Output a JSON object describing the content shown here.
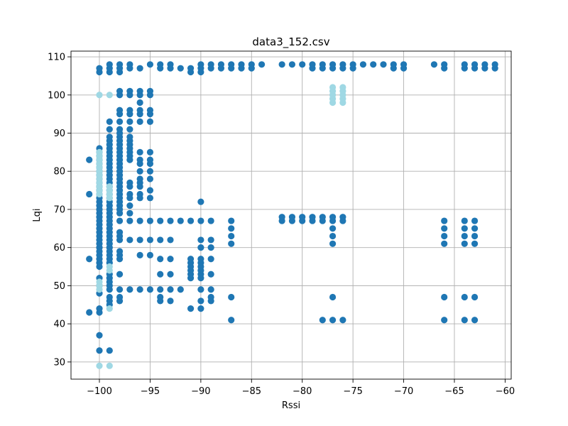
{
  "chart_data": {
    "type": "scatter",
    "title": "data3_152.csv",
    "xlabel": "Rssi",
    "ylabel": "Lqi",
    "xlim": [
      -102.8,
      -59.4
    ],
    "ylim": [
      25.5,
      111.5
    ],
    "x_ticks": [
      -100,
      -95,
      -90,
      -85,
      -80,
      -75,
      -70,
      -65,
      -60
    ],
    "y_ticks": [
      30,
      40,
      50,
      60,
      70,
      80,
      90,
      100,
      110
    ],
    "grid": true,
    "colors": {
      "dark": "#1f77b4",
      "light": "#9fd8e4"
    },
    "series": [
      {
        "color": "dark",
        "columns": [
          {
            "x": -101,
            "y": [
              43,
              57,
              74,
              83
            ]
          },
          {
            "x": -100,
            "y": [
              33,
              37,
              43,
              44,
              48,
              50,
              52,
              55,
              56,
              57,
              58,
              59,
              60,
              61,
              62,
              63,
              64,
              65,
              66,
              67,
              68,
              69,
              70,
              71,
              72,
              73,
              74,
              75,
              76,
              77,
              78,
              79,
              80,
              81,
              82,
              83,
              84,
              85,
              86,
              106,
              107
            ]
          },
          {
            "x": -99,
            "y": [
              33,
              45,
              46,
              47,
              49,
              50,
              51,
              52,
              53,
              56,
              57,
              58,
              59,
              60,
              61,
              62,
              63,
              64,
              65,
              66,
              67,
              68,
              69,
              70,
              71,
              72,
              73,
              74,
              75,
              76,
              77,
              78,
              79,
              80,
              81,
              82,
              83,
              84,
              85,
              86,
              87,
              88,
              89,
              91,
              93,
              106,
              107,
              108
            ]
          },
          {
            "x": -98,
            "y": [
              46,
              47,
              49,
              53,
              57,
              58,
              59,
              62,
              63,
              64,
              67,
              69,
              70,
              71,
              72,
              73,
              74,
              75,
              76,
              77,
              78,
              79,
              80,
              81,
              82,
              83,
              84,
              85,
              86,
              87,
              88,
              89,
              90,
              91,
              93,
              95,
              96,
              100,
              101,
              106,
              107,
              108
            ]
          },
          {
            "x": -97,
            "y": [
              49,
              62,
              67,
              69,
              71,
              73,
              74,
              76,
              77,
              83,
              84,
              85,
              86,
              87,
              88,
              89,
              91,
              93,
              95,
              96,
              100,
              101,
              107,
              108
            ]
          },
          {
            "x": -96,
            "y": [
              49,
              58,
              62,
              67,
              73,
              74,
              76,
              77,
              78,
              80,
              82,
              83,
              85,
              93,
              95,
              96,
              98,
              100,
              101,
              107
            ]
          },
          {
            "x": -95,
            "y": [
              49,
              58,
              62,
              67,
              73,
              75,
              78,
              80,
              82,
              83,
              85,
              93,
              95,
              96,
              100,
              101,
              108
            ]
          },
          {
            "x": -94,
            "y": [
              46,
              47,
              49,
              53,
              57,
              62,
              67,
              107,
              108
            ]
          },
          {
            "x": -93,
            "y": [
              46,
              49,
              53,
              57,
              62,
              67,
              107,
              108
            ]
          },
          {
            "x": -92,
            "y": [
              49,
              67,
              107
            ]
          },
          {
            "x": -91,
            "y": [
              44,
              52,
              53,
              54,
              55,
              56,
              57,
              67,
              106,
              107
            ]
          },
          {
            "x": -90,
            "y": [
              44,
              46,
              49,
              52,
              53,
              54,
              55,
              56,
              57,
              60,
              62,
              67,
              72,
              106,
              107,
              108
            ]
          },
          {
            "x": -89,
            "y": [
              46,
              47,
              49,
              53,
              57,
              60,
              62,
              67,
              107,
              108
            ]
          },
          {
            "x": -88,
            "y": [
              107,
              108
            ]
          },
          {
            "x": -87,
            "y": [
              41,
              47,
              61,
              63,
              65,
              67,
              107,
              108
            ]
          },
          {
            "x": -86,
            "y": [
              107,
              108
            ]
          },
          {
            "x": -85,
            "y": [
              107,
              108
            ]
          },
          {
            "x": -84,
            "y": [
              108
            ]
          },
          {
            "x": -82,
            "y": [
              67,
              68,
              108
            ]
          },
          {
            "x": -81,
            "y": [
              67,
              68,
              108
            ]
          },
          {
            "x": -80,
            "y": [
              67,
              68,
              108
            ]
          },
          {
            "x": -79,
            "y": [
              67,
              68,
              107,
              108
            ]
          },
          {
            "x": -78,
            "y": [
              41,
              67,
              68,
              107,
              108
            ]
          },
          {
            "x": -77,
            "y": [
              41,
              47,
              61,
              63,
              65,
              67,
              68,
              107,
              108
            ]
          },
          {
            "x": -76,
            "y": [
              41,
              67,
              68,
              107,
              108
            ]
          },
          {
            "x": -75,
            "y": [
              107,
              108
            ]
          },
          {
            "x": -74,
            "y": [
              108
            ]
          },
          {
            "x": -73,
            "y": [
              108
            ]
          },
          {
            "x": -72,
            "y": [
              108
            ]
          },
          {
            "x": -71,
            "y": [
              107,
              108
            ]
          },
          {
            "x": -70,
            "y": [
              107,
              108
            ]
          },
          {
            "x": -67,
            "y": [
              108
            ]
          },
          {
            "x": -66,
            "y": [
              41,
              47,
              61,
              63,
              65,
              67,
              107,
              108
            ]
          },
          {
            "x": -64,
            "y": [
              41,
              47,
              61,
              63,
              65,
              67,
              107,
              108
            ]
          },
          {
            "x": -63,
            "y": [
              41,
              47,
              61,
              63,
              65,
              67,
              107,
              108
            ]
          },
          {
            "x": -62,
            "y": [
              107,
              108
            ]
          },
          {
            "x": -61,
            "y": [
              107,
              108
            ]
          }
        ]
      },
      {
        "color": "light",
        "columns": [
          {
            "x": -100,
            "y": [
              29,
              49,
              50,
              51,
              74,
              75,
              76,
              77,
              78,
              79,
              80,
              81,
              82,
              83,
              84,
              85,
              100
            ]
          },
          {
            "x": -99,
            "y": [
              29,
              44,
              54,
              55,
              73,
              74,
              75,
              76,
              100
            ]
          },
          {
            "x": -77,
            "y": [
              98,
              99,
              100,
              101,
              102
            ]
          },
          {
            "x": -76,
            "y": [
              98,
              99,
              100,
              101,
              102
            ]
          }
        ]
      }
    ]
  }
}
